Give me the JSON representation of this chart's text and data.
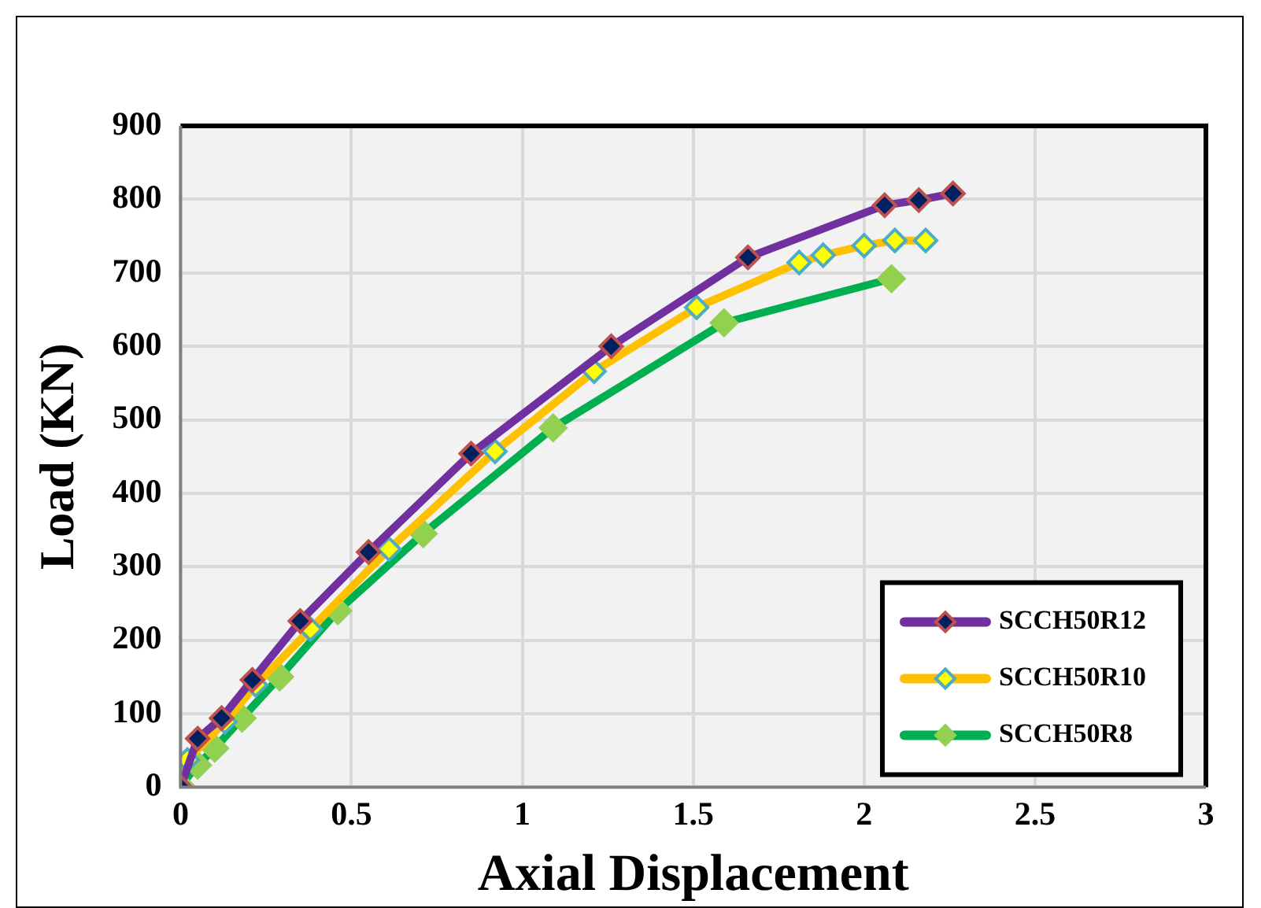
{
  "chart_data": {
    "type": "line",
    "xlabel": "Axial Displacement",
    "ylabel": "Load (KN)",
    "xlim": [
      0,
      3
    ],
    "xticks": [
      0,
      0.5,
      1,
      1.5,
      2,
      2.5,
      3
    ],
    "ylim": [
      0,
      900
    ],
    "yticks": [
      0,
      100,
      200,
      300,
      400,
      500,
      600,
      700,
      800,
      900
    ],
    "grid": true,
    "legend": "bottom right",
    "marker": "diamond",
    "line_style": "solid",
    "series": [
      {
        "name": "SCCH50R12",
        "color": "#7030a0",
        "x": [
          0,
          0.05,
          0.12,
          0.21,
          0.35,
          0.55,
          0.85,
          1.26,
          1.66,
          2.06,
          2.16,
          2.26
        ],
        "values": [
          0,
          66,
          94,
          146,
          226,
          320,
          454,
          600,
          721,
          792,
          799,
          808
        ]
      },
      {
        "name": "SCCH50R10",
        "color": "#ffc000",
        "x": [
          0,
          0.02,
          0.13,
          0.22,
          0.38,
          0.61,
          0.92,
          1.21,
          1.51,
          1.81,
          1.88,
          2.0,
          2.09,
          2.18
        ],
        "values": [
          0,
          37,
          89,
          139,
          215,
          324,
          457,
          566,
          653,
          714,
          724,
          737,
          744,
          744
        ]
      },
      {
        "name": "SCCH50R8",
        "color": "#00b050",
        "x": [
          0,
          0.05,
          0.1,
          0.18,
          0.29,
          0.46,
          0.71,
          1.09,
          1.59,
          2.08
        ],
        "values": [
          2,
          30,
          53,
          94,
          150,
          240,
          345,
          489,
          632,
          692
        ]
      }
    ]
  }
}
